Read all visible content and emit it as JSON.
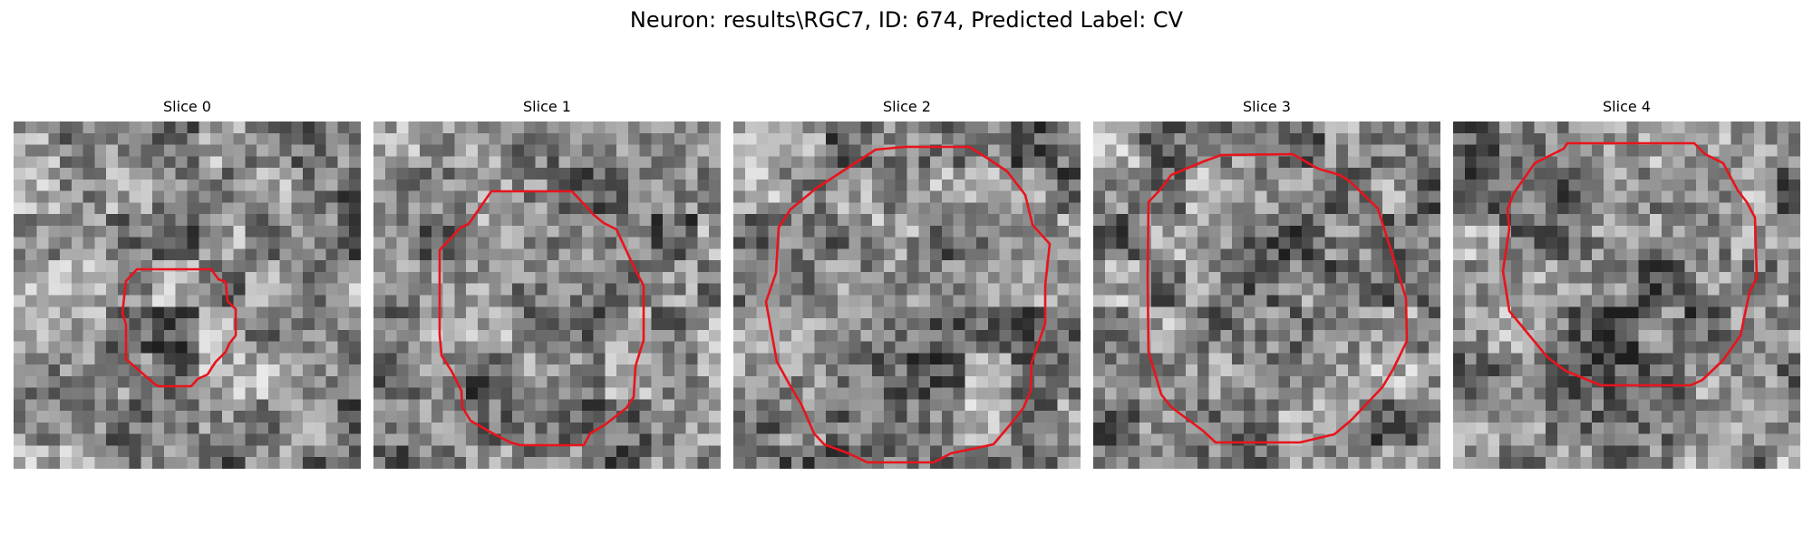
{
  "figure": {
    "title": "Neuron: results\\RGC7, ID: 674, Predicted Label: CV"
  },
  "panels": [
    {
      "title": "Slice 0"
    },
    {
      "title": "Slice 1"
    },
    {
      "title": "Slice 2"
    },
    {
      "title": "Slice 3"
    },
    {
      "title": "Slice 4"
    }
  ],
  "colors": {
    "contour": "#e8141c",
    "background": "#ffffff"
  }
}
